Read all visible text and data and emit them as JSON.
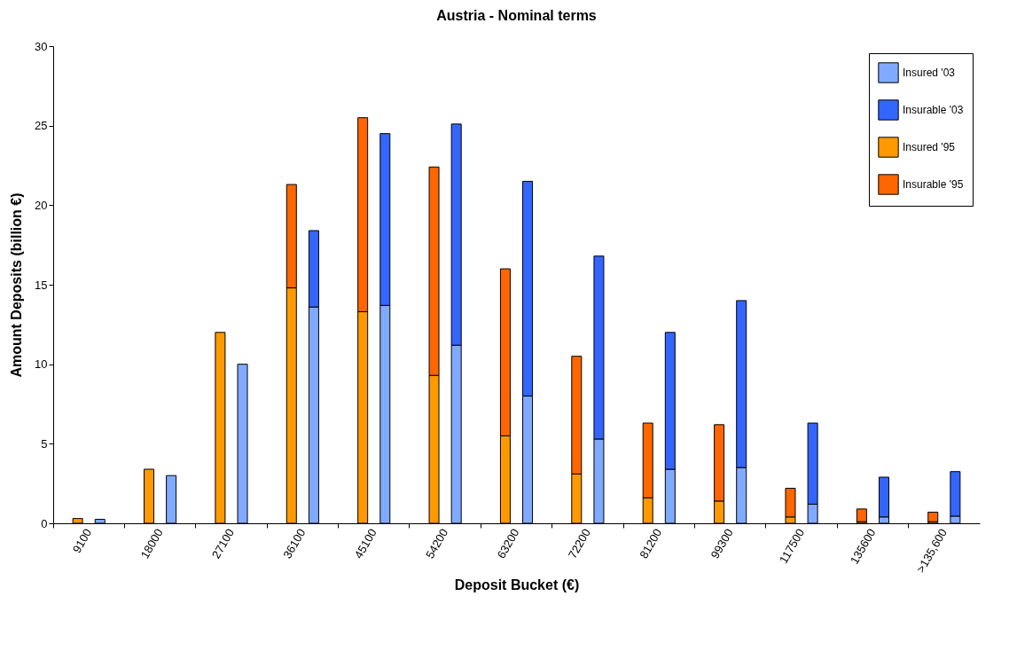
{
  "chart_data": {
    "type": "bar",
    "title": "Austria - Nominal terms",
    "xlabel": "Deposit Bucket (€)",
    "ylabel": "Amount Deposits (billion €)",
    "categories": [
      "9100",
      null,
      "18000",
      null,
      "27100",
      null,
      "36100",
      null,
      "45100",
      null,
      "54200",
      null,
      "63200",
      null,
      "72200",
      null,
      "81200",
      null,
      "99300",
      null,
      "117500",
      null,
      "135600",
      null,
      ">135,600",
      null
    ],
    "stacked": true,
    "ylim": [
      0,
      30
    ],
    "yticks": [
      0,
      5,
      10,
      15,
      20,
      25,
      30
    ],
    "grid": false,
    "legend": "top right",
    "series": [
      {
        "name": "Insured '03",
        "color": "#80aaff",
        "values": [
          null,
          0.25,
          null,
          3.0,
          null,
          10.0,
          null,
          13.6,
          null,
          13.7,
          null,
          11.2,
          null,
          8.0,
          null,
          5.3,
          null,
          3.4,
          null,
          3.5,
          null,
          1.2,
          null,
          0.4,
          null,
          0.45
        ]
      },
      {
        "name": "Insurable '03",
        "color": "#3366ff",
        "values": [
          null,
          null,
          null,
          null,
          null,
          null,
          null,
          4.8,
          null,
          10.8,
          null,
          13.9,
          null,
          13.5,
          null,
          11.5,
          null,
          8.6,
          null,
          10.5,
          null,
          5.1,
          null,
          2.5,
          null,
          2.8
        ]
      },
      {
        "name": "Insured '95",
        "color": "#ff9900",
        "values": [
          0.3,
          null,
          3.4,
          null,
          12.0,
          null,
          14.8,
          null,
          13.3,
          null,
          9.3,
          null,
          5.5,
          null,
          3.1,
          null,
          1.6,
          null,
          1.4,
          null,
          0.4,
          null,
          0.1,
          null,
          0.1,
          null
        ]
      },
      {
        "name": "Insurable '95",
        "color": "#ff6600",
        "values": [
          null,
          null,
          null,
          null,
          null,
          null,
          6.5,
          null,
          12.2,
          null,
          13.1,
          null,
          10.5,
          null,
          7.4,
          null,
          4.7,
          null,
          4.8,
          null,
          1.8,
          null,
          0.8,
          null,
          0.6,
          null
        ]
      }
    ]
  }
}
